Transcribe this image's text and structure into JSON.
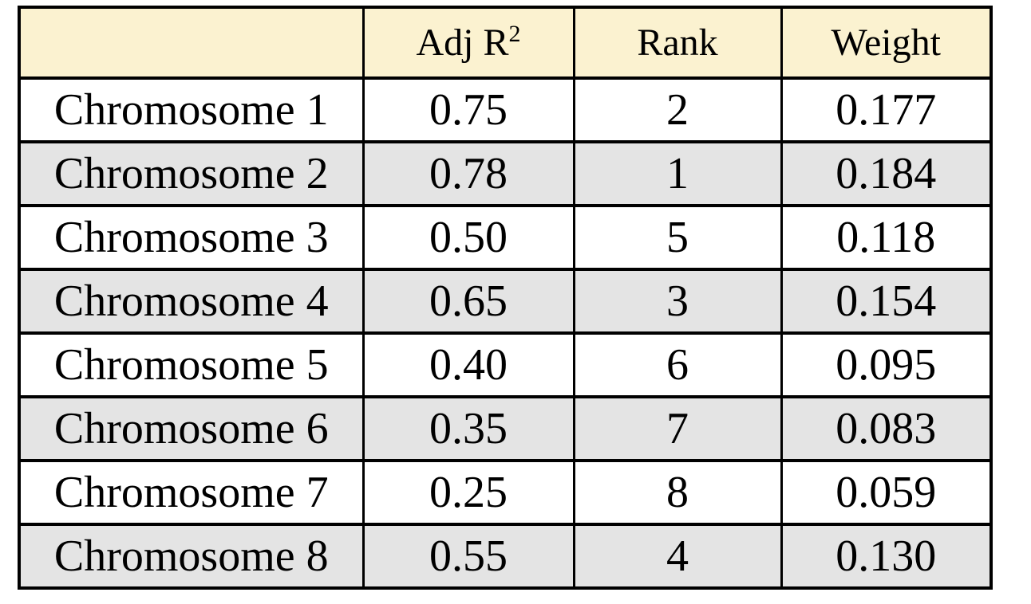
{
  "table": {
    "columns": [
      {
        "label": ""
      },
      {
        "label": "Adj R",
        "sup": "2"
      },
      {
        "label": "Rank"
      },
      {
        "label": "Weight"
      }
    ],
    "rows": [
      {
        "name": "Chromosome 1",
        "adj_r2": "0.75",
        "rank": "2",
        "weight": "0.177"
      },
      {
        "name": "Chromosome 2",
        "adj_r2": "0.78",
        "rank": "1",
        "weight": "0.184"
      },
      {
        "name": "Chromosome 3",
        "adj_r2": "0.50",
        "rank": "5",
        "weight": "0.118"
      },
      {
        "name": "Chromosome 4",
        "adj_r2": "0.65",
        "rank": "3",
        "weight": "0.154"
      },
      {
        "name": "Chromosome 5",
        "adj_r2": "0.40",
        "rank": "6",
        "weight": "0.095"
      },
      {
        "name": "Chromosome 6",
        "adj_r2": "0.35",
        "rank": "7",
        "weight": "0.083"
      },
      {
        "name": "Chromosome 7",
        "adj_r2": "0.25",
        "rank": "8",
        "weight": "0.059"
      },
      {
        "name": "Chromosome 8",
        "adj_r2": "0.55",
        "rank": "4",
        "weight": "0.130"
      }
    ]
  },
  "colors": {
    "header_bg": "#FBF2D0",
    "row_even_bg": "#E4E4E4",
    "row_odd_bg": "#FFFFFF",
    "border": "#000000",
    "text": "#000000"
  },
  "chart_data": {
    "type": "table",
    "columns": [
      "",
      "Adj R²",
      "Rank",
      "Weight"
    ],
    "rows": [
      [
        "Chromosome 1",
        0.75,
        2,
        0.177
      ],
      [
        "Chromosome 2",
        0.78,
        1,
        0.184
      ],
      [
        "Chromosome 3",
        0.5,
        5,
        0.118
      ],
      [
        "Chromosome 4",
        0.65,
        3,
        0.154
      ],
      [
        "Chromosome 5",
        0.4,
        6,
        0.095
      ],
      [
        "Chromosome 6",
        0.35,
        7,
        0.083
      ],
      [
        "Chromosome 7",
        0.25,
        8,
        0.059
      ],
      [
        "Chromosome 8",
        0.55,
        4,
        0.13
      ]
    ],
    "notes": "Header row cream background; data rows alternate white/light gray; all borders black."
  }
}
